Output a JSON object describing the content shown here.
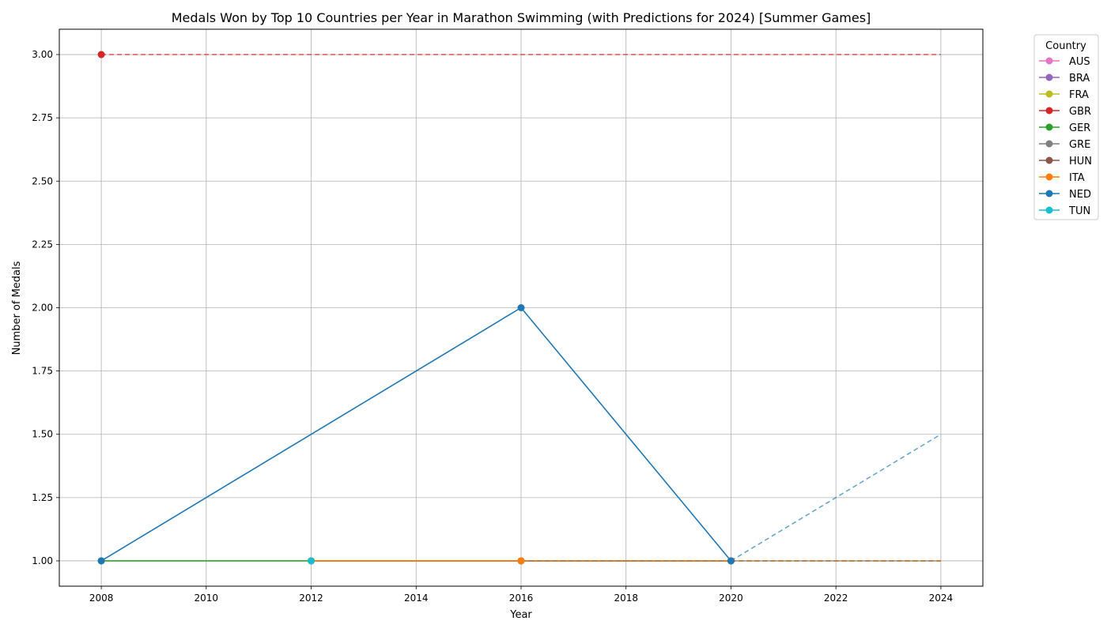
{
  "chart_data": {
    "type": "line",
    "title": "Medals Won by Top 10 Countries per Year in Marathon Swimming (with Predictions for 2024) [Summer Games]",
    "xlabel": "Year",
    "ylabel": "Number of Medals",
    "xlim": [
      2007.2,
      2024.8
    ],
    "ylim": [
      0.9,
      3.1
    ],
    "xticks": [
      "2008",
      "2010",
      "2012",
      "2014",
      "2016",
      "2018",
      "2020",
      "2022",
      "2024"
    ],
    "yticks": [
      "1.00",
      "1.25",
      "1.50",
      "1.75",
      "2.00",
      "2.25",
      "2.50",
      "2.75",
      "3.00"
    ],
    "grid": true,
    "legend": {
      "title": "Country",
      "placement": "upper-right-outside"
    },
    "prediction_year": 2024,
    "series": [
      {
        "name": "AUS",
        "color": "#e377c2",
        "points": [
          [
            2016,
            1
          ]
        ],
        "prediction": null
      },
      {
        "name": "BRA",
        "color": "#9467bd",
        "points": [
          [
            2020,
            1
          ]
        ],
        "prediction": 1
      },
      {
        "name": "FRA",
        "color": "#bcbd22",
        "points": [
          [
            2016,
            1
          ]
        ],
        "prediction": null
      },
      {
        "name": "GBR",
        "color": "#d62728",
        "points": [
          [
            2008,
            3
          ]
        ],
        "prediction": 3
      },
      {
        "name": "GER",
        "color": "#2ca02c",
        "points": [
          [
            2008,
            1
          ],
          [
            2012,
            1
          ],
          [
            2016,
            1
          ],
          [
            2020,
            1
          ]
        ],
        "prediction": 1
      },
      {
        "name": "GRE",
        "color": "#7f7f7f",
        "points": [
          [
            2016,
            1
          ]
        ],
        "prediction": 1
      },
      {
        "name": "HUN",
        "color": "#8c564b",
        "points": [
          [
            2012,
            1
          ],
          [
            2020,
            1
          ]
        ],
        "prediction": 1
      },
      {
        "name": "ITA",
        "color": "#ff7f0e",
        "points": [
          [
            2012,
            1
          ],
          [
            2016,
            1
          ],
          [
            2020,
            1
          ]
        ],
        "prediction": 1
      },
      {
        "name": "NED",
        "color": "#1f77b4",
        "points": [
          [
            2008,
            1
          ],
          [
            2016,
            2
          ],
          [
            2020,
            1
          ]
        ],
        "prediction": 1.5
      },
      {
        "name": "TUN",
        "color": "#17becf",
        "points": [
          [
            2012,
            1
          ]
        ],
        "prediction": null
      }
    ]
  }
}
